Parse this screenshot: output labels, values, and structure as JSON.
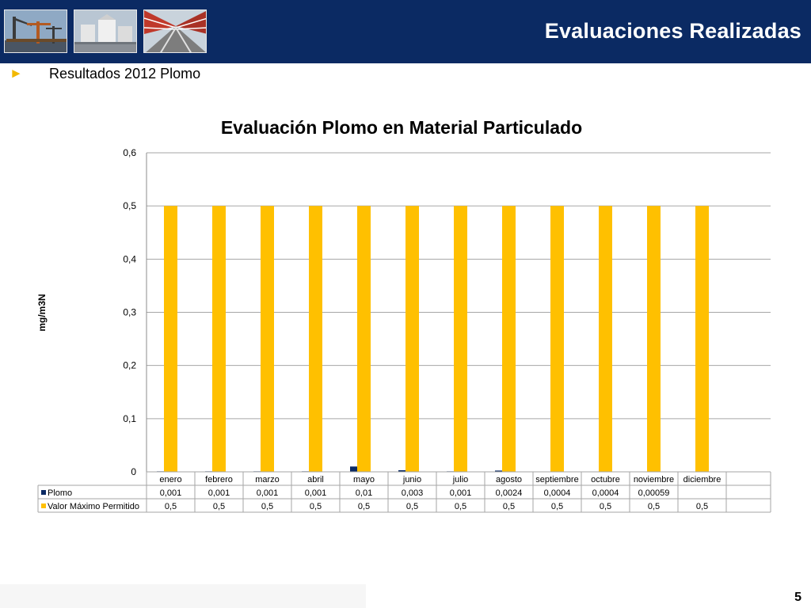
{
  "header": {
    "title": "Evaluaciones Realizadas",
    "photos": [
      "port-cranes-photo",
      "industrial-silos-photo",
      "conveyor-walkway-photo"
    ]
  },
  "bullet": {
    "text": "Resultados 2012 Plomo",
    "color": "#f2b800"
  },
  "chart_data": {
    "type": "bar",
    "title": "Evaluación Plomo en Material Particulado",
    "xlabel": "",
    "ylabel": "mg/m3N",
    "ylim": [
      0,
      0.6
    ],
    "yticks": [
      0,
      0.1,
      0.2,
      0.3,
      0.4,
      0.5,
      0.6
    ],
    "ytick_labels": [
      "0",
      "0,1",
      "0,2",
      "0,3",
      "0,4",
      "0,5",
      "0,6"
    ],
    "grid": true,
    "legend": "data-table",
    "categories": [
      "enero",
      "febrero",
      "marzo",
      "abril",
      "mayo",
      "junio",
      "julio",
      "agosto",
      "septiembre",
      "octubre",
      "noviembre",
      "diciembre"
    ],
    "series": [
      {
        "name": "Plomo",
        "color": "#0b2a63",
        "values": [
          0.001,
          0.001,
          0.001,
          0.001,
          0.01,
          0.003,
          0.001,
          0.0024,
          0.0004,
          0.0004,
          0.00059,
          null
        ],
        "labels": [
          "0,001",
          "0,001",
          "0,001",
          "0,001",
          "0,01",
          "0,003",
          "0,001",
          "0,0024",
          "0,0004",
          "0,0004",
          "0,00059",
          ""
        ]
      },
      {
        "name": "Valor Máximo Permitido",
        "color": "#ffc000",
        "values": [
          0.5,
          0.5,
          0.5,
          0.5,
          0.5,
          0.5,
          0.5,
          0.5,
          0.5,
          0.5,
          0.5,
          0.5
        ],
        "labels": [
          "0,5",
          "0,5",
          "0,5",
          "0,5",
          "0,5",
          "0,5",
          "0,5",
          "0,5",
          "0,5",
          "0,5",
          "0,5",
          "0,5"
        ]
      }
    ]
  },
  "page": {
    "number": "5"
  }
}
